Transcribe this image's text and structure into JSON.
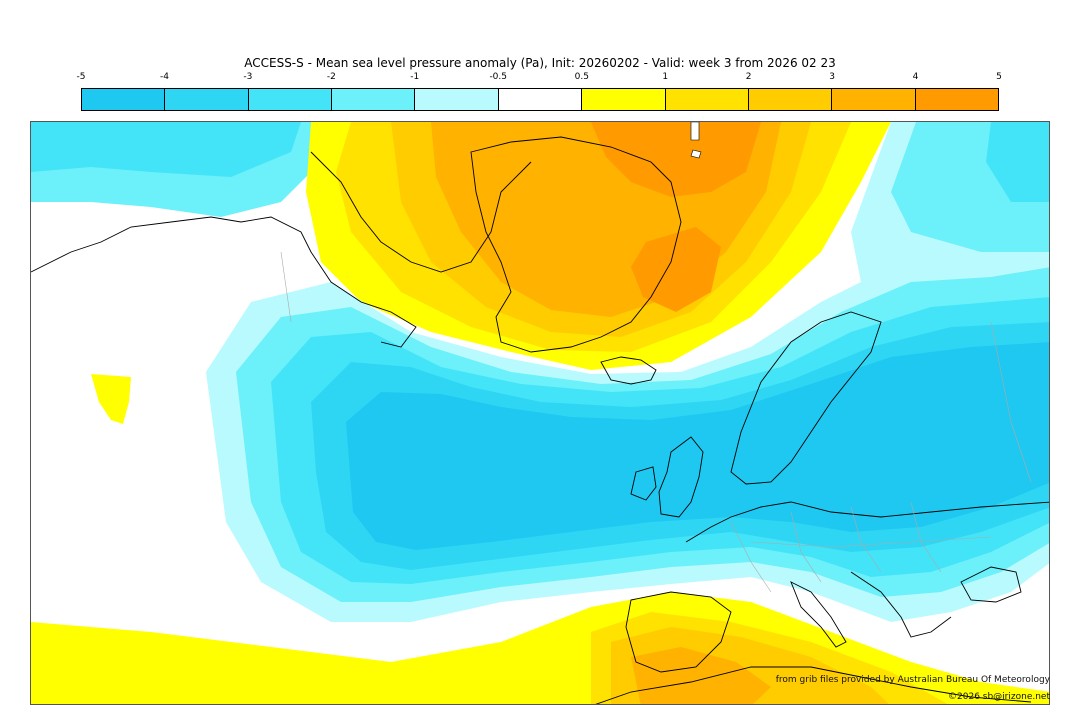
{
  "title": "ACCESS-S - Mean sea level pressure anomaly (Pa), Init: 20260202 - Valid: week 3 from 2026 02 23",
  "colorbar": {
    "ticks": [
      "-5",
      "-4",
      "-3",
      "-2",
      "-1",
      "-0.5",
      "0.5",
      "1",
      "2",
      "3",
      "4",
      "5"
    ],
    "colors": [
      "#1ec8f0",
      "#2ed6f4",
      "#44e4f8",
      "#6cf0fa",
      "#b8fafe",
      "#ffffff",
      "#ffff00",
      "#ffe200",
      "#ffcc00",
      "#ffb200",
      "#ff9a00"
    ]
  },
  "credits": {
    "source": "from grib files provided by Australian Bureau Of Meteorology",
    "copyright": "©2026 sb@irizone.net"
  },
  "colors": {
    "coastline": "#000000",
    "borders": "#aaaaaa",
    "frame": "#555555"
  }
}
